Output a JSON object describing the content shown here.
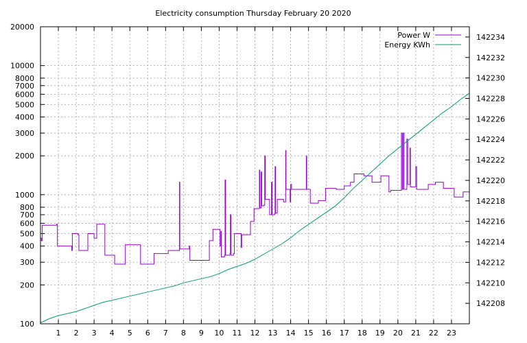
{
  "chart_data": {
    "type": "line",
    "title": "Electricity consumption Thursday February 20 2020",
    "xlabel": "",
    "ylabel": "",
    "y2label": "",
    "xlim": [
      0,
      24
    ],
    "ylim": [
      100,
      20000
    ],
    "yscale": "log",
    "y2lim": [
      142206,
      142235
    ],
    "grid": true,
    "legend_position": "top-right",
    "x_ticks": [
      1,
      2,
      3,
      4,
      5,
      6,
      7,
      8,
      9,
      10,
      11,
      12,
      13,
      14,
      15,
      16,
      17,
      18,
      19,
      20,
      21,
      22,
      23
    ],
    "y_ticks": [
      100,
      200,
      300,
      400,
      500,
      600,
      700,
      800,
      1000,
      2000,
      3000,
      4000,
      5000,
      6000,
      7000,
      8000,
      10000,
      20000
    ],
    "y2_ticks": [
      142208,
      142210,
      142212,
      142214,
      142216,
      142218,
      142220,
      142222,
      142224,
      142226,
      142228,
      142230,
      142232,
      142234
    ],
    "series": [
      {
        "name": "Power W",
        "axis": "left",
        "color": "#9400d3",
        "points": [
          [
            0,
            460
          ],
          [
            0.05,
            440
          ],
          [
            0.1,
            580
          ],
          [
            0.9,
            590
          ],
          [
            0.95,
            400
          ],
          [
            1.7,
            400
          ],
          [
            1.75,
            370
          ],
          [
            1.78,
            500
          ],
          [
            2.1,
            490
          ],
          [
            2.15,
            370
          ],
          [
            2.6,
            370
          ],
          [
            2.65,
            500
          ],
          [
            2.95,
            500
          ],
          [
            3.0,
            460
          ],
          [
            3.15,
            590
          ],
          [
            3.55,
            590
          ],
          [
            3.6,
            340
          ],
          [
            4.1,
            340
          ],
          [
            4.15,
            290
          ],
          [
            4.7,
            290
          ],
          [
            4.75,
            410
          ],
          [
            5.55,
            410
          ],
          [
            5.6,
            290
          ],
          [
            6.3,
            290
          ],
          [
            6.35,
            350
          ],
          [
            7.1,
            350
          ],
          [
            7.15,
            370
          ],
          [
            7.75,
            370
          ],
          [
            7.78,
            1250
          ],
          [
            7.8,
            380
          ],
          [
            8.3,
            380
          ],
          [
            8.33,
            400
          ],
          [
            8.36,
            310
          ],
          [
            9.4,
            310
          ],
          [
            9.45,
            440
          ],
          [
            9.6,
            440
          ],
          [
            9.65,
            540
          ],
          [
            10.0,
            540
          ],
          [
            10.05,
            400
          ],
          [
            10.1,
            520
          ],
          [
            10.12,
            330
          ],
          [
            10.3,
            340
          ],
          [
            10.33,
            1300
          ],
          [
            10.36,
            340
          ],
          [
            10.6,
            350
          ],
          [
            10.63,
            700
          ],
          [
            10.66,
            340
          ],
          [
            10.8,
            350
          ],
          [
            10.85,
            500
          ],
          [
            11.2,
            500
          ],
          [
            11.23,
            390
          ],
          [
            11.26,
            490
          ],
          [
            11.7,
            490
          ],
          [
            11.75,
            620
          ],
          [
            11.9,
            620
          ],
          [
            11.95,
            780
          ],
          [
            12.2,
            780
          ],
          [
            12.25,
            1550
          ],
          [
            12.27,
            790
          ],
          [
            12.35,
            1500
          ],
          [
            12.38,
            820
          ],
          [
            12.5,
            830
          ],
          [
            12.55,
            2000
          ],
          [
            12.58,
            920
          ],
          [
            12.8,
            920
          ],
          [
            12.82,
            700
          ],
          [
            12.9,
            700
          ],
          [
            12.93,
            1250
          ],
          [
            12.96,
            700
          ],
          [
            13.1,
            710
          ],
          [
            13.13,
            1650
          ],
          [
            13.16,
            720
          ],
          [
            13.2,
            720
          ],
          [
            13.25,
            920
          ],
          [
            13.55,
            920
          ],
          [
            13.6,
            880
          ],
          [
            13.7,
            880
          ],
          [
            13.72,
            2200
          ],
          [
            13.74,
            1100
          ],
          [
            13.95,
            1100
          ],
          [
            13.97,
            880
          ],
          [
            14.0,
            1200
          ],
          [
            14.05,
            1100
          ],
          [
            14.85,
            1100
          ],
          [
            14.88,
            2000
          ],
          [
            14.9,
            1100
          ],
          [
            15.05,
            1100
          ],
          [
            15.1,
            860
          ],
          [
            15.5,
            860
          ],
          [
            15.55,
            900
          ],
          [
            15.9,
            900
          ],
          [
            15.95,
            1120
          ],
          [
            16.5,
            1120
          ],
          [
            16.55,
            1100
          ],
          [
            16.95,
            1100
          ],
          [
            17.0,
            1170
          ],
          [
            17.3,
            1170
          ],
          [
            17.35,
            1250
          ],
          [
            17.5,
            1250
          ],
          [
            17.55,
            1450
          ],
          [
            18.05,
            1450
          ],
          [
            18.1,
            1400
          ],
          [
            18.5,
            1400
          ],
          [
            18.55,
            1250
          ],
          [
            19.0,
            1250
          ],
          [
            19.05,
            1400
          ],
          [
            19.45,
            1400
          ],
          [
            19.5,
            1050
          ],
          [
            19.6,
            1080
          ],
          [
            20.15,
            1080
          ],
          [
            20.2,
            3000
          ],
          [
            20.25,
            1100
          ],
          [
            20.3,
            3000
          ],
          [
            20.35,
            1100
          ],
          [
            20.45,
            1100
          ],
          [
            20.5,
            2700
          ],
          [
            20.55,
            1200
          ],
          [
            20.65,
            1200
          ],
          [
            20.68,
            2300
          ],
          [
            20.7,
            1150
          ],
          [
            20.95,
            1150
          ],
          [
            21.0,
            1650
          ],
          [
            21.05,
            1100
          ],
          [
            21.65,
            1100
          ],
          [
            21.7,
            1200
          ],
          [
            22.05,
            1200
          ],
          [
            22.1,
            1250
          ],
          [
            22.5,
            1250
          ],
          [
            22.55,
            1120
          ],
          [
            23.1,
            1120
          ],
          [
            23.15,
            960
          ],
          [
            23.6,
            960
          ],
          [
            23.65,
            1050
          ],
          [
            24.0,
            1050
          ]
        ]
      },
      {
        "name": "Energy KWh",
        "axis": "right",
        "color": "#009e73",
        "points": [
          [
            0,
            142206.1
          ],
          [
            0.5,
            142206.5
          ],
          [
            1,
            142206.8
          ],
          [
            1.5,
            142207.0
          ],
          [
            2,
            142207.2
          ],
          [
            2.5,
            142207.5
          ],
          [
            3,
            142207.8
          ],
          [
            3.5,
            142208.1
          ],
          [
            4,
            142208.3
          ],
          [
            4.5,
            142208.5
          ],
          [
            5,
            142208.7
          ],
          [
            5.5,
            142208.9
          ],
          [
            6,
            142209.1
          ],
          [
            6.5,
            142209.3
          ],
          [
            7,
            142209.5
          ],
          [
            7.5,
            142209.7
          ],
          [
            8,
            142210.0
          ],
          [
            8.5,
            142210.2
          ],
          [
            9,
            142210.4
          ],
          [
            9.5,
            142210.6
          ],
          [
            10,
            142210.9
          ],
          [
            10.5,
            142211.3
          ],
          [
            11,
            142211.6
          ],
          [
            11.5,
            142211.9
          ],
          [
            12,
            142212.3
          ],
          [
            12.5,
            142212.8
          ],
          [
            13,
            142213.3
          ],
          [
            13.5,
            142213.8
          ],
          [
            14,
            142214.4
          ],
          [
            14.5,
            142215.1
          ],
          [
            15,
            142215.7
          ],
          [
            15.5,
            142216.3
          ],
          [
            16,
            142216.9
          ],
          [
            16.5,
            142217.5
          ],
          [
            17,
            142218.3
          ],
          [
            17.5,
            142219.2
          ],
          [
            18,
            142220.0
          ],
          [
            18.5,
            142220.8
          ],
          [
            19,
            142221.6
          ],
          [
            19.5,
            142222.4
          ],
          [
            20,
            142223.1
          ],
          [
            20.5,
            142223.8
          ],
          [
            21,
            142224.5
          ],
          [
            21.5,
            142225.2
          ],
          [
            22,
            142225.9
          ],
          [
            22.5,
            142226.6
          ],
          [
            23,
            142227.2
          ],
          [
            23.5,
            142227.9
          ],
          [
            24,
            142228.5
          ]
        ]
      }
    ]
  }
}
